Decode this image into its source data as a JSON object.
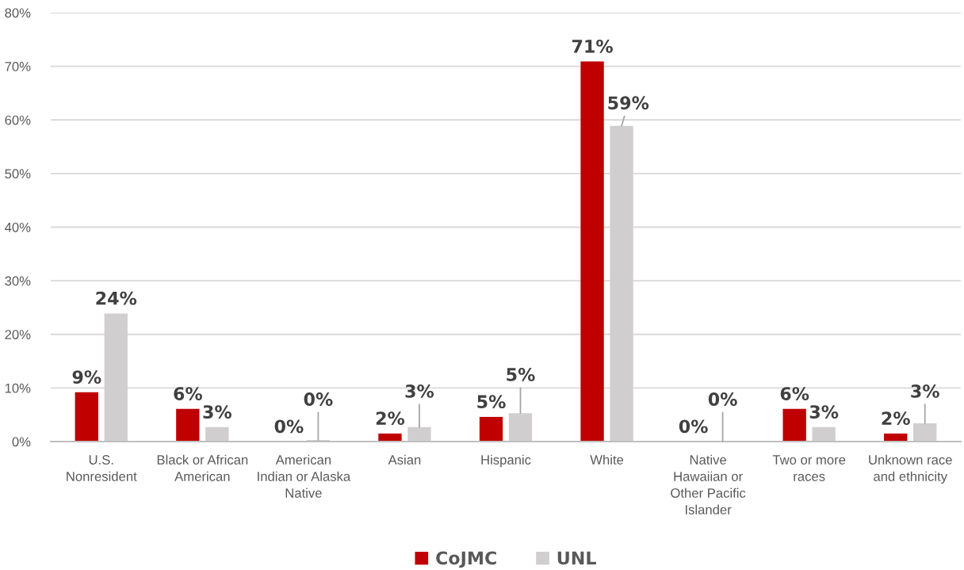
{
  "chart_data": {
    "type": "bar",
    "categories": [
      "U.S.\nNonresident",
      "Black or African\nAmerican",
      "American\nIndian or Alaska\nNative",
      "Asian",
      "Hispanic",
      "White",
      "Native\nHawaiian or\nOther Pacific\nIslander",
      "Two or more\nraces",
      "Unknown race\nand ethnicity"
    ],
    "series": [
      {
        "name": "CoJMC",
        "color": "#c00000",
        "values": [
          9.2,
          6.1,
          0,
          1.5,
          4.6,
          70.9,
          0,
          6.1,
          1.5
        ],
        "value_labels": [
          "9%",
          "6%",
          "0%",
          "2%",
          "5%",
          "71%",
          "0%",
          "6%",
          "2%"
        ]
      },
      {
        "name": "UNL",
        "color": "#d0cece",
        "values": [
          23.9,
          2.7,
          0.3,
          2.7,
          5.3,
          58.9,
          0,
          2.7,
          3.4
        ],
        "value_labels": [
          "24%",
          "3%",
          "0%",
          "3%",
          "5%",
          "59%",
          "0%",
          "3%",
          "3%"
        ]
      }
    ],
    "ylim": [
      0,
      80
    ],
    "yticks": [
      {
        "value": 0,
        "label": "0%"
      },
      {
        "value": 10,
        "label": "10%"
      },
      {
        "value": 20,
        "label": "20%"
      },
      {
        "value": 30,
        "label": "30%"
      },
      {
        "value": 40,
        "label": "40%"
      },
      {
        "value": 50,
        "label": "50%"
      },
      {
        "value": 60,
        "label": "60%"
      },
      {
        "value": 70,
        "label": "70%"
      },
      {
        "value": 80,
        "label": "80%"
      }
    ],
    "grid": "y",
    "legend": "bottom"
  }
}
